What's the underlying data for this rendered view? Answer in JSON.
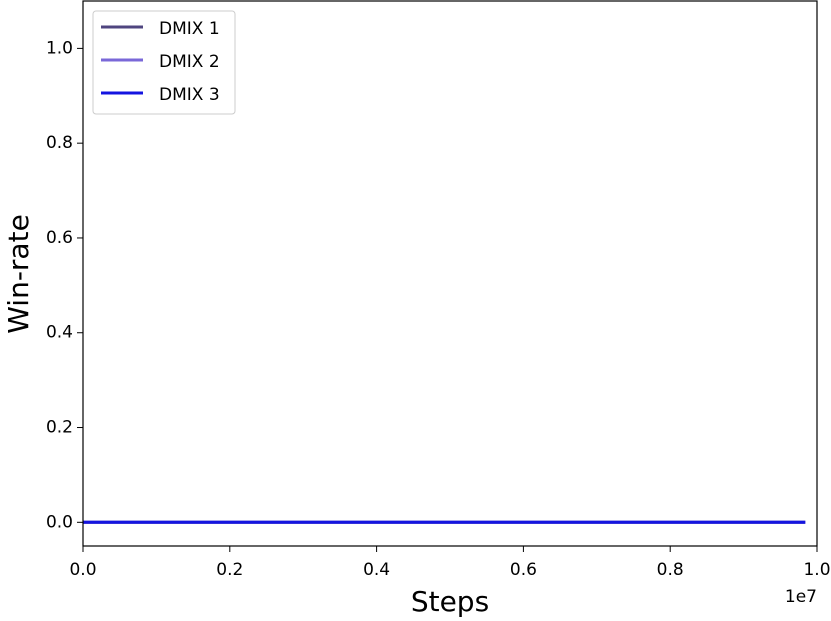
{
  "chart_data": {
    "type": "line",
    "xlabel": "Steps",
    "ylabel": "Win-rate",
    "x_offset_text": "1e7",
    "x": [
      0,
      0.2,
      0.4,
      0.6,
      0.8,
      0.984
    ],
    "series": [
      {
        "name": "DMIX 1",
        "color": "#4f457f",
        "values": [
          0,
          0,
          0,
          0,
          0,
          0
        ]
      },
      {
        "name": "DMIX 2",
        "color": "#7a68d8",
        "values": [
          0,
          0,
          0,
          0,
          0,
          0
        ]
      },
      {
        "name": "DMIX 3",
        "color": "#1414e0",
        "values": [
          0,
          0,
          0,
          0,
          0,
          0
        ]
      }
    ],
    "xlim": [
      0,
      1
    ],
    "ylim": [
      -0.05,
      1.1
    ],
    "xticks": [
      {
        "value": 0,
        "label": "0.0"
      },
      {
        "value": 0.2,
        "label": "0.2"
      },
      {
        "value": 0.4,
        "label": "0.4"
      },
      {
        "value": 0.6,
        "label": "0.6"
      },
      {
        "value": 0.8,
        "label": "0.8"
      },
      {
        "value": 1,
        "label": "1.0"
      }
    ],
    "yticks": [
      {
        "value": 0,
        "label": "0.0"
      },
      {
        "value": 0.2,
        "label": "0.2"
      },
      {
        "value": 0.4,
        "label": "0.4"
      },
      {
        "value": 0.6,
        "label": "0.6"
      },
      {
        "value": 0.8,
        "label": "0.8"
      },
      {
        "value": 1,
        "label": "1.0"
      }
    ],
    "grid": false,
    "legend_loc": "upper left"
  }
}
